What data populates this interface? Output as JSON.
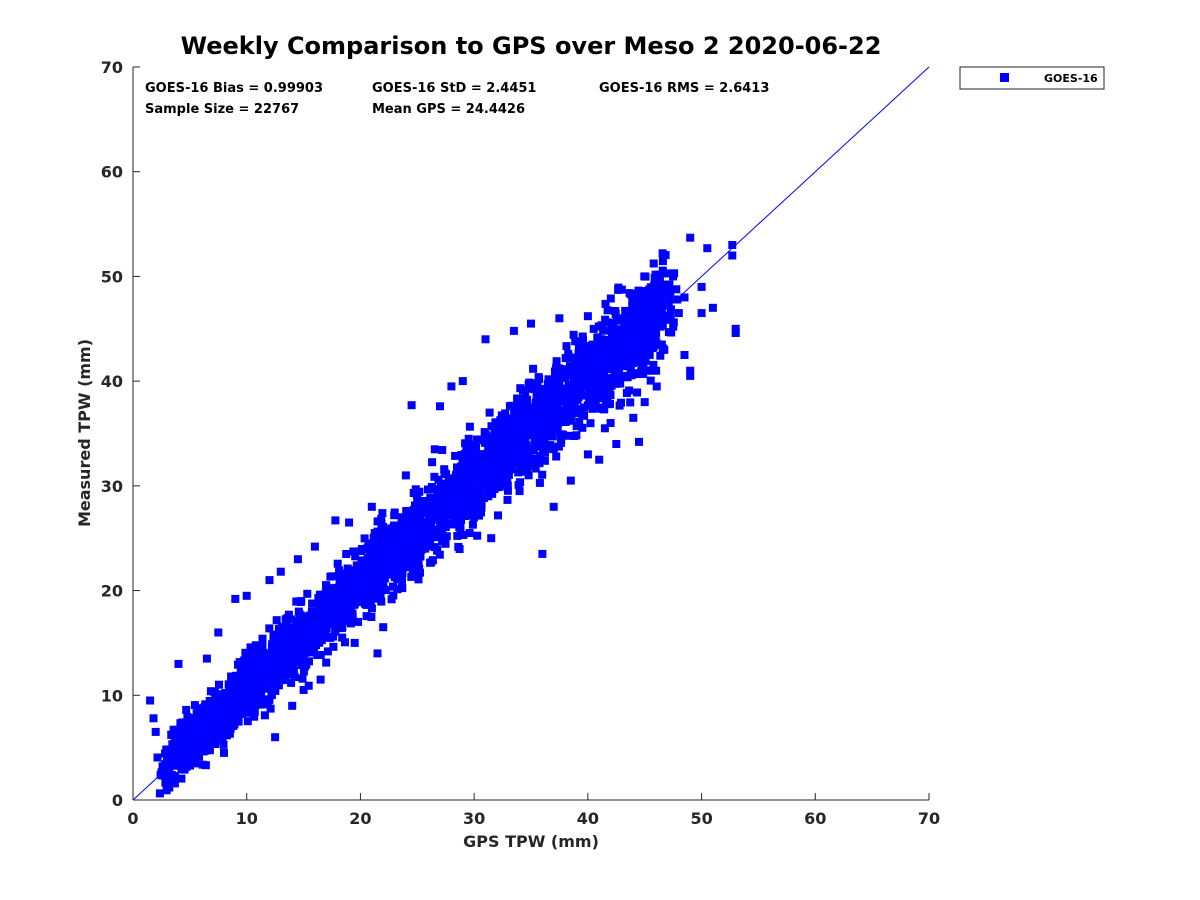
{
  "chart_data": {
    "type": "scatter",
    "title": "Weekly Comparison to GPS over Meso 2 2020-06-22",
    "xlabel": "GPS TPW (mm)",
    "ylabel": "Measured TPW (mm)",
    "xlim": [
      0,
      70
    ],
    "ylim": [
      0,
      70
    ],
    "xticks": [
      "0",
      "10",
      "20",
      "30",
      "40",
      "50",
      "60",
      "70"
    ],
    "yticks": [
      "0",
      "10",
      "20",
      "30",
      "40",
      "50",
      "60",
      "70"
    ],
    "grid": false,
    "legend_position": "outside-top-right",
    "reference_line": {
      "name": "1:1 line",
      "from": [
        0,
        0
      ],
      "to": [
        70,
        70
      ],
      "color": "#0000ff"
    },
    "stats": {
      "bias": "GOES-16 Bias = 0.99903",
      "std": "GOES-16 StD = 2.4451",
      "rms": "GOES-16 RMS = 2.6413",
      "sample_size": "Sample Size = 22767",
      "mean_gps": "Mean GPS = 24.4426"
    },
    "series": [
      {
        "name": "GOES-16",
        "color": "#0000ff",
        "marker": "square",
        "cloud": {
          "x_range": [
            3,
            47
          ],
          "std_perp": 2.4,
          "bias": 1.0,
          "count": 3200
        },
        "points": [
          [
            1.5,
            9.5
          ],
          [
            1.8,
            7.8
          ],
          [
            2.0,
            6.5
          ],
          [
            3.2,
            3.2
          ],
          [
            3.5,
            3.8
          ],
          [
            4.0,
            13.0
          ],
          [
            6.5,
            13.5
          ],
          [
            7.5,
            16.0
          ],
          [
            9.0,
            19.2
          ],
          [
            10.0,
            19.5
          ],
          [
            12.0,
            21.0
          ],
          [
            13.0,
            21.8
          ],
          [
            14.5,
            23.0
          ],
          [
            16.0,
            24.2
          ],
          [
            17.8,
            26.7
          ],
          [
            19.0,
            26.5
          ],
          [
            21.0,
            28.0
          ],
          [
            21.5,
            14.0
          ],
          [
            22.0,
            16.5
          ],
          [
            24.0,
            31.0
          ],
          [
            24.5,
            37.7
          ],
          [
            27.0,
            37.6
          ],
          [
            28.0,
            39.5
          ],
          [
            29.0,
            40.0
          ],
          [
            31.0,
            44.0
          ],
          [
            31.5,
            25.0
          ],
          [
            35.0,
            45.5
          ],
          [
            33.5,
            44.8
          ],
          [
            36.0,
            23.5
          ],
          [
            37.0,
            28.0
          ],
          [
            37.5,
            46.0
          ],
          [
            40.0,
            46.2
          ],
          [
            41.0,
            32.5
          ],
          [
            41.5,
            35.5
          ],
          [
            42.5,
            34.0
          ],
          [
            43.0,
            46.0
          ],
          [
            43.5,
            40.5
          ],
          [
            44.0,
            36.5
          ],
          [
            44.5,
            34.2
          ],
          [
            45.0,
            38.0
          ],
          [
            46.0,
            47.5
          ],
          [
            46.5,
            43.5
          ],
          [
            46.0,
            41.0
          ],
          [
            47.0,
            48.2
          ],
          [
            47.5,
            50.0
          ],
          [
            48.0,
            46.5
          ],
          [
            48.5,
            42.5
          ],
          [
            48.5,
            48.0
          ],
          [
            49.0,
            53.7
          ],
          [
            49.0,
            41.0
          ],
          [
            49.0,
            40.5
          ],
          [
            50.0,
            49.0
          ],
          [
            50.0,
            46.5
          ],
          [
            50.5,
            52.7
          ],
          [
            52.7,
            53.0
          ],
          [
            52.7,
            52.0
          ],
          [
            53.0,
            45.0
          ],
          [
            53.0,
            44.6
          ],
          [
            51.0,
            47.0
          ],
          [
            45.5,
            44.0
          ],
          [
            5.5,
            3.5
          ],
          [
            8.0,
            4.5
          ],
          [
            12.5,
            6.0
          ],
          [
            14.0,
            9.0
          ],
          [
            15.0,
            10.5
          ],
          [
            16.5,
            11.5
          ],
          [
            19.5,
            15.0
          ],
          [
            26.0,
            25.0
          ],
          [
            27.5,
            26.5
          ],
          [
            30.0,
            27.0
          ],
          [
            34.0,
            29.5
          ],
          [
            38.5,
            30.5
          ],
          [
            40.0,
            33.0
          ],
          [
            42.0,
            36.0
          ],
          [
            45.5,
            41.0
          ]
        ]
      }
    ]
  }
}
